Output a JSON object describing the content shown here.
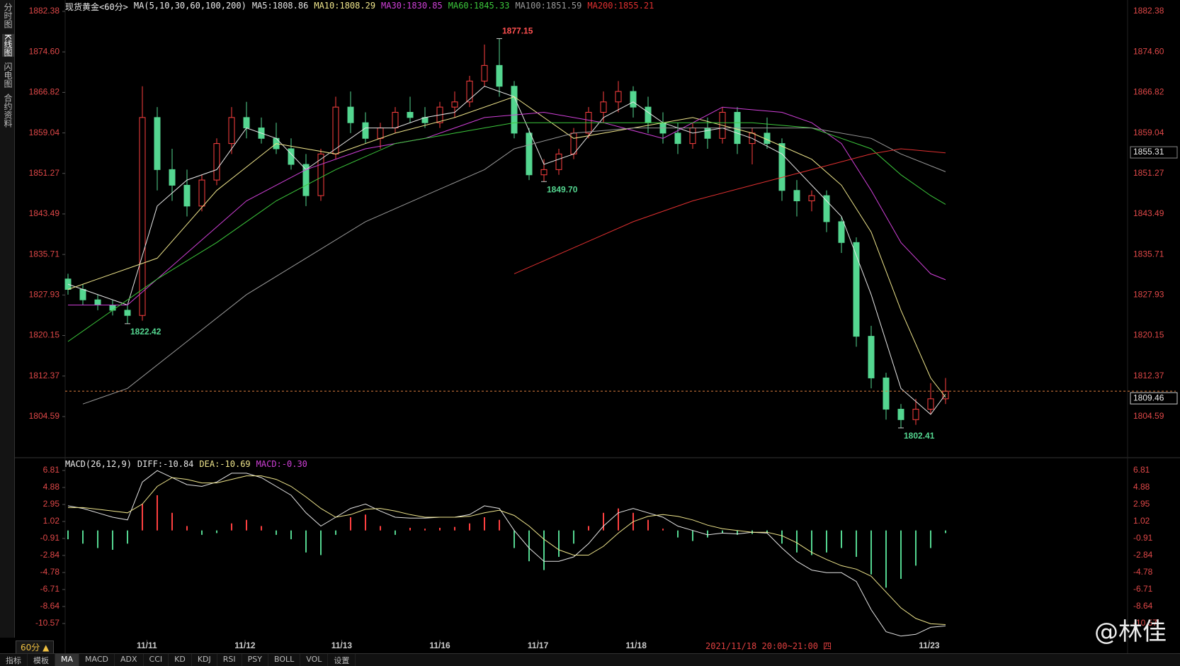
{
  "sidebar": [
    "分时图",
    "K线图",
    "闪电图",
    "合约资料"
  ],
  "chart_data": [
    {
      "type": "candlestick",
      "title": "现货黄金<60分>",
      "subtitle": "MA(5,10,30,60,100,200)",
      "ylim": [
        1797.1,
        1884.56
      ],
      "yticks": [
        1804.59,
        1812.37,
        1820.15,
        1827.93,
        1835.71,
        1843.49,
        1851.27,
        1859.04,
        1866.82,
        {
          "value": 1874.6,
          "label": "1874.60"
        },
        1882.38
      ],
      "xticks": [
        {
          "value": 5.3,
          "label": "11/11"
        },
        {
          "value": 11.9,
          "label": "11/12"
        },
        {
          "value": 18.4,
          "label": "11/13"
        },
        {
          "value": 25,
          "label": "11/16"
        },
        {
          "value": 31.6,
          "label": "11/17"
        },
        {
          "value": 38.2,
          "label": "11/18"
        },
        {
          "value": 57.9,
          "label": "11/23"
        }
      ],
      "open": [
        1831,
        1829,
        1827,
        1826,
        1825,
        1824,
        1862,
        1852,
        1849,
        1845,
        1850,
        1857,
        1862,
        1860,
        1858,
        1856,
        1853,
        1847,
        1855,
        1864,
        1861,
        1858,
        1860,
        1863,
        1862,
        1861,
        1864,
        1865,
        1869,
        1872,
        1868,
        1859,
        1851,
        1852,
        1855,
        1859,
        1863,
        1865,
        1867,
        1864,
        1861,
        1859,
        1857,
        1860,
        1858,
        1863,
        1857,
        1859,
        1857,
        1848,
        1846,
        1847,
        1842,
        1838,
        1820,
        1812,
        1806,
        1804,
        1806,
        1808
      ],
      "high": [
        1832,
        1830,
        1828,
        1827,
        1826,
        1868,
        1864,
        1856,
        1852,
        1851,
        1858,
        1864,
        1865,
        1862,
        1861,
        1858,
        1855,
        1856,
        1866,
        1867,
        1863,
        1861,
        1864,
        1866,
        1864,
        1865,
        1867,
        1870,
        1876,
        1877.15,
        1869,
        1860,
        1854,
        1856,
        1860,
        1864,
        1867,
        1869,
        1868,
        1866,
        1863,
        1861,
        1861,
        1862,
        1864,
        1864,
        1860,
        1862,
        1858,
        1850,
        1848,
        1848,
        1843,
        1839,
        1822,
        1813,
        1807,
        1808,
        1811,
        1812
      ],
      "low": [
        1828,
        1826,
        1825,
        1824,
        1822.42,
        1823,
        1848,
        1846,
        1843,
        1844,
        1849,
        1855,
        1858,
        1857,
        1855,
        1852,
        1845,
        1846,
        1854,
        1859,
        1857,
        1856,
        1859,
        1861,
        1860,
        1860,
        1862,
        1864,
        1868,
        1866,
        1858,
        1850,
        1849.7,
        1851,
        1854,
        1858,
        1861,
        1863,
        1862,
        1859,
        1857,
        1855,
        1856,
        1856,
        1857,
        1855,
        1853,
        1856,
        1846,
        1843,
        1844,
        1840,
        1836,
        1818,
        1810,
        1804,
        1802.41,
        1803,
        1805,
        1807
      ],
      "close": [
        1829,
        1827,
        1826,
        1825,
        1824,
        1862,
        1852,
        1849,
        1845,
        1850,
        1857,
        1862,
        1860,
        1858,
        1856,
        1853,
        1847,
        1855,
        1864,
        1861,
        1858,
        1860,
        1863,
        1862,
        1861,
        1864,
        1865,
        1869,
        1872,
        1868,
        1859,
        1851,
        1852,
        1855,
        1859,
        1863,
        1865,
        1867,
        1864,
        1861,
        1859,
        1857,
        1860,
        1858,
        1863,
        1857,
        1859,
        1857,
        1848,
        1846,
        1847,
        1842,
        1838,
        1820,
        1812,
        1806,
        1804,
        1806,
        1808,
        1809.46
      ],
      "up_color": "#ff4040",
      "down_color": "#54d690",
      "series": [
        {
          "name": "MA5:1808.86",
          "color": "#e6e6e6",
          "x": [
            0,
            4,
            6,
            8,
            10,
            12,
            14,
            16,
            18,
            20,
            22,
            24,
            26,
            28,
            30,
            32,
            34,
            36,
            38,
            40,
            42,
            44,
            46,
            48,
            50,
            52,
            54,
            56,
            58,
            59
          ],
          "values": [
            1830,
            1826,
            1845,
            1850,
            1852,
            1860,
            1858,
            1852,
            1856,
            1860,
            1860,
            1862,
            1863,
            1868,
            1866,
            1853,
            1855,
            1862,
            1865,
            1861,
            1859,
            1860,
            1858,
            1855,
            1849,
            1843,
            1828,
            1810,
            1805,
            1808.86
          ]
        },
        {
          "name": "MA10:1808.29",
          "color": "#f0e68c",
          "x": [
            0,
            6,
            10,
            14,
            18,
            22,
            26,
            30,
            34,
            38,
            42,
            46,
            50,
            52,
            54,
            56,
            58,
            59
          ],
          "values": [
            1829,
            1835,
            1848,
            1857,
            1855,
            1859,
            1862,
            1866,
            1858,
            1860,
            1862,
            1859,
            1854,
            1849,
            1840,
            1825,
            1812,
            1808.29
          ]
        },
        {
          "name": "MA30:1830.85",
          "color": "#d040d8",
          "x": [
            0,
            4,
            8,
            12,
            16,
            20,
            24,
            28,
            32,
            36,
            40,
            44,
            48,
            50,
            52,
            54,
            56,
            58,
            59
          ],
          "values": [
            1826,
            1826,
            1836,
            1846,
            1852,
            1856,
            1858,
            1862,
            1863,
            1861,
            1858,
            1864,
            1863,
            1861,
            1857,
            1848,
            1838,
            1832,
            1830.85
          ]
        },
        {
          "name": "MA60:1845.33",
          "color": "#3cc83c",
          "x": [
            0,
            6,
            10,
            14,
            18,
            22,
            26,
            30,
            34,
            38,
            42,
            46,
            50,
            52,
            54,
            56,
            58,
            59
          ],
          "values": [
            1819,
            1831,
            1838,
            1846,
            1852,
            1857,
            1859,
            1861,
            1861,
            1861,
            1861,
            1861,
            1860,
            1858,
            1856,
            1851,
            1847,
            1845.33
          ]
        },
        {
          "name": "MA100:1851.59",
          "color": "#9a9a9a",
          "x": [
            1,
            4,
            8,
            12,
            16,
            20,
            24,
            28,
            30,
            34,
            38,
            42,
            46,
            50,
            54,
            56,
            59
          ],
          "values": [
            1807,
            1810,
            1819,
            1828,
            1835,
            1842,
            1847,
            1852,
            1856,
            1859,
            1860,
            1860,
            1860,
            1860,
            1858,
            1855,
            1851.59
          ]
        },
        {
          "name": "MA200:1855.21",
          "color": "#e03030",
          "x": [
            30,
            34,
            38,
            42,
            46,
            50,
            54,
            56,
            59
          ],
          "values": [
            1832,
            1837,
            1842,
            1846,
            1849,
            1852,
            1855,
            1856,
            1855.21
          ]
        }
      ],
      "annotations": [
        {
          "value": 1877.15,
          "label": "1877.15"
        },
        {
          "value": 1849.7,
          "label": "1849.70"
        },
        {
          "value": 1822.42,
          "label": "1822.42"
        },
        {
          "value": 1802.41,
          "label": "1802.41"
        }
      ],
      "last_price": 1809.46,
      "cursor_price": 1855.31,
      "cursor_label": "2021/11/18 20:00~21:00 四"
    },
    {
      "type": "macd",
      "title": "MACD(26,12,9)",
      "ylim": [
        -12.58,
        7.94
      ],
      "yticks": [
        6.81,
        4.88,
        2.95,
        1.02,
        -0.91,
        -2.84,
        -4.78,
        -6.71,
        -8.64,
        -10.57
      ],
      "series": [
        {
          "name": "DIFF:-10.84",
          "color": "#e6e6e6",
          "values": [
            2.8,
            2.5,
            2,
            1.5,
            1.2,
            5.5,
            6.8,
            6,
            5.2,
            5,
            5.5,
            6.5,
            6.5,
            6,
            5,
            4,
            2,
            0.5,
            1.5,
            2.5,
            3,
            2.2,
            1.5,
            1.4,
            1.4,
            1.5,
            1.5,
            1.8,
            2.8,
            2.5,
            0,
            -2,
            -3.5,
            -3.5,
            -3,
            -1.5,
            0.5,
            2,
            2.5,
            2,
            1.5,
            0.5,
            0,
            -0.5,
            -0.3,
            -0.4,
            -0.2,
            -0.3,
            -2,
            -3.5,
            -4.5,
            -4.8,
            -4.8,
            -5.8,
            -9,
            -11.5,
            -12,
            -11.8,
            -11,
            -10.84
          ]
        },
        {
          "name": "DEA:-10.69",
          "color": "#f0e68c",
          "values": [
            2.6,
            2.6,
            2.4,
            2.2,
            2,
            3,
            5,
            6,
            5.8,
            5.4,
            5.4,
            5.8,
            6.2,
            6.2,
            5.8,
            5,
            3.8,
            2.5,
            1.5,
            1.8,
            2.4,
            2.5,
            2.2,
            1.8,
            1.5,
            1.5,
            1.5,
            1.6,
            2,
            2.3,
            1.7,
            0.5,
            -1,
            -2.2,
            -2.8,
            -2.8,
            -1.8,
            -0.3,
            1,
            1.6,
            1.8,
            1.6,
            1.2,
            0.6,
            0.2,
            0,
            -0.2,
            -0.2,
            -0.6,
            -1.4,
            -2.5,
            -3.3,
            -4,
            -4.4,
            -5.2,
            -7,
            -8.8,
            -10,
            -10.6,
            -10.69
          ]
        },
        {
          "name": "MACD:-0.30",
          "color": "#d040d8",
          "up_color": "#ff4040",
          "down_color": "#54d690",
          "values": [
            -1,
            -1.5,
            -2,
            -2.2,
            -1.5,
            3,
            4,
            2,
            0.5,
            -0.5,
            -0.3,
            0.8,
            1.2,
            0.5,
            -0.5,
            -1,
            -2.5,
            -2.8,
            -0.5,
            1.5,
            1.8,
            0.5,
            -0.5,
            0.3,
            0.2,
            0.3,
            0.4,
            0.8,
            1.5,
            1.2,
            -2,
            -3.5,
            -4.5,
            -3,
            -1.5,
            0.5,
            2,
            2.5,
            2,
            1.2,
            0.2,
            -0.8,
            -1.2,
            -0.8,
            -0.3,
            -0.5,
            -0.4,
            -0.3,
            -1.5,
            -2.5,
            -2.8,
            -2.5,
            -2,
            -3,
            -5,
            -6.5,
            -5.5,
            -4,
            -2,
            -0.3
          ]
        }
      ]
    }
  ],
  "toolbar": {
    "period": "60分 ▲",
    "tabs": [
      "指标",
      "模板",
      "MA",
      "MACD",
      "ADX",
      "CCI",
      "KD",
      "KDJ",
      "RSI",
      "PSY",
      "BOLL",
      "VOL",
      "设置"
    ]
  },
  "watermark": "@林佳"
}
